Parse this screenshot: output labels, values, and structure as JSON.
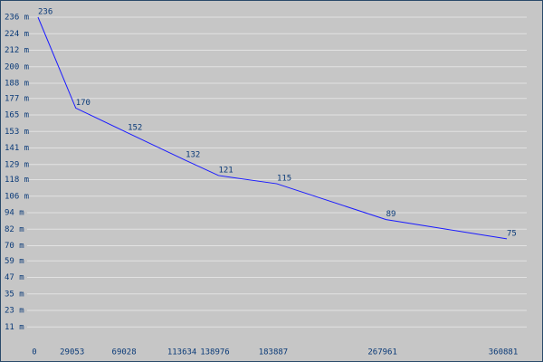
{
  "chart_data": {
    "type": "line",
    "x": [
      0,
      29053,
      69028,
      113634,
      138976,
      183887,
      267961,
      360881
    ],
    "values": [
      236,
      170,
      152,
      132,
      121,
      115,
      89,
      75
    ],
    "color": "#1a1aff",
    "xlim": [
      0,
      360881
    ],
    "xticks": [
      0,
      29053,
      69028,
      113634,
      138976,
      183887,
      267961,
      360881
    ],
    "ylim": [
      0,
      236
    ],
    "yticks": [
      {
        "value": 11,
        "label": "11 m"
      },
      {
        "value": 23,
        "label": "23 m"
      },
      {
        "value": 35,
        "label": "35 m"
      },
      {
        "value": 47,
        "label": "47 m"
      },
      {
        "value": 59,
        "label": "59 m"
      },
      {
        "value": 70,
        "label": "70 m"
      },
      {
        "value": 82,
        "label": "82 m"
      },
      {
        "value": 94,
        "label": "94 m"
      },
      {
        "value": 106,
        "label": "106 m"
      },
      {
        "value": 118,
        "label": "118 m"
      },
      {
        "value": 129,
        "label": "129 m"
      },
      {
        "value": 141,
        "label": "141 m"
      },
      {
        "value": 153,
        "label": "153 m"
      },
      {
        "value": 165,
        "label": "165 m"
      },
      {
        "value": 177,
        "label": "177 m"
      },
      {
        "value": 188,
        "label": "188 m"
      },
      {
        "value": 200,
        "label": "200 m"
      },
      {
        "value": 212,
        "label": "212 m"
      },
      {
        "value": 224,
        "label": "224 m"
      },
      {
        "value": 236,
        "label": "236 m"
      }
    ],
    "grid": true
  }
}
